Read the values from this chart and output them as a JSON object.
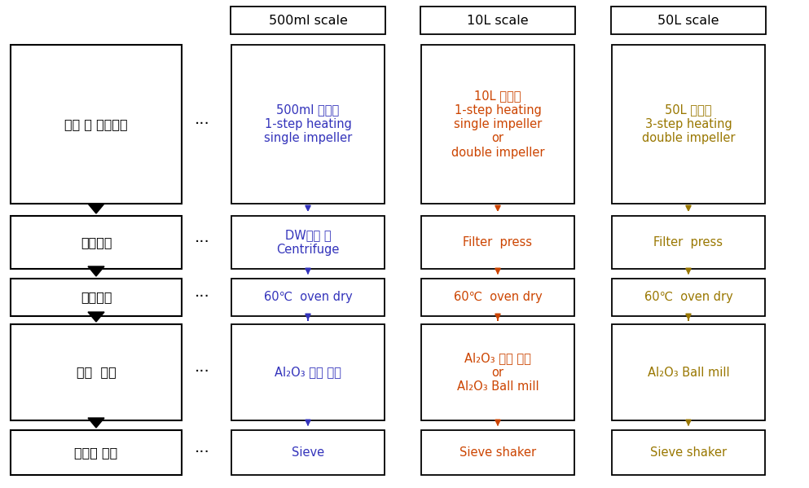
{
  "col_headers": [
    "500ml scale",
    "10L scale",
    "50L scale"
  ],
  "left_labels": [
    "혼합 및 숙성공정",
    "세첵공정",
    "건조공정",
    "분쁼  공정",
    "체거름 공정"
  ],
  "col500_texts": [
    "500ml 반응조\n1-step heating\nsingle impeller",
    "DW세첵 및\nCentrifuge",
    "60℃  oven dry",
    "Al₂O₃ 유발 분쁼",
    "Sieve"
  ],
  "col10L_texts": [
    "10L 반응조\n1-step heating\nsingle impeller\nor\ndouble impeller",
    "Filter  press",
    "60℃  oven dry",
    "Al₂O₃ 유발 분쁼\nor\nAl₂O₃ Ball mill",
    "Sieve shaker"
  ],
  "col50L_texts": [
    "50L 반응조\n3-step heating\ndouble impeller",
    "Filter  press",
    "60℃  oven dry",
    "Al₂O₃ Ball mill",
    "Sieve shaker"
  ],
  "col500_color": "#3333bb",
  "col10L_color": "#cc4400",
  "col50L_color": "#997700",
  "left_color": "#000000",
  "header_color": "#000000",
  "bg_color": "#ffffff"
}
